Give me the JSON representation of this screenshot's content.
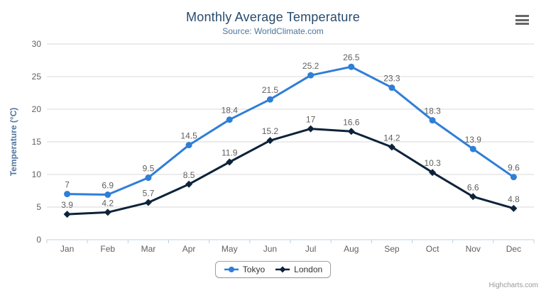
{
  "chart_data": {
    "type": "line",
    "title": "Monthly Average Temperature",
    "subtitle": "Source: WorldClimate.com",
    "categories": [
      "Jan",
      "Feb",
      "Mar",
      "Apr",
      "May",
      "Jun",
      "Jul",
      "Aug",
      "Sep",
      "Oct",
      "Nov",
      "Dec"
    ],
    "series": [
      {
        "name": "Tokyo",
        "color": "#2f7ed8",
        "marker": "circle",
        "values": [
          7,
          6.9,
          9.5,
          14.5,
          18.4,
          21.5,
          25.2,
          26.5,
          23.3,
          18.3,
          13.9,
          9.6
        ]
      },
      {
        "name": "London",
        "color": "#0d233a",
        "marker": "diamond",
        "values": [
          3.9,
          4.2,
          5.7,
          8.5,
          11.9,
          15.2,
          17,
          16.6,
          14.2,
          10.3,
          6.6,
          4.8
        ]
      }
    ],
    "xlabel": "",
    "ylabel": "Temperature (°C)",
    "ylim": [
      0,
      30
    ],
    "ytick_step": 5,
    "grid": true,
    "data_labels": true,
    "legend_position": "bottom",
    "colors": {
      "grid": "#d8d8d8",
      "axis_line": "#c0d0e0",
      "tick": "#c0d0e0",
      "tick_label": "#606060",
      "axis_title": "#4d759e",
      "title": "#274b6d",
      "subtitle": "#4d759e",
      "data_label": "#606060",
      "legend_text": "#333333",
      "legend_border": "#a0a0a0",
      "credits": "#999999",
      "menu_icon": "#666666"
    }
  },
  "icons": {
    "context_menu": "hamburger-menu-icon"
  },
  "credits": {
    "label": "Highcharts.com"
  }
}
